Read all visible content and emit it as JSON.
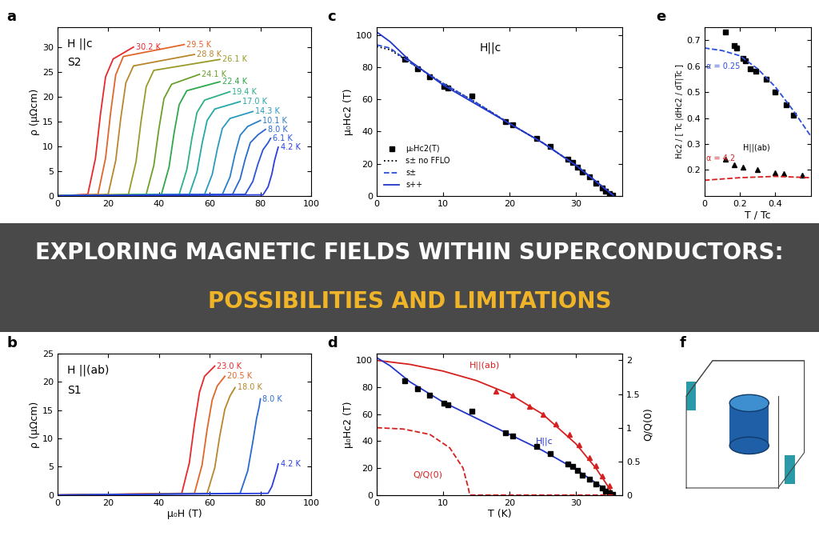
{
  "banner": {
    "title": "EXPLORING MAGNETIC FIELDS WITHIN SUPERCONDUCTORS:",
    "subtitle": "POSSIBILITIES AND LIMITATIONS"
  },
  "chart_data": [
    {
      "type": "line",
      "title": "a",
      "y_label": "ρ (μΩcm)",
      "annotations": [
        "H ||c",
        "S2"
      ],
      "xlim": [
        0,
        100
      ],
      "xticks": [
        0,
        20,
        40,
        60,
        80,
        100
      ],
      "ylim": [
        0,
        34
      ],
      "yticks": [
        0,
        5,
        10,
        15,
        20,
        25,
        30
      ],
      "series": [
        {
          "name": "30.2 K",
          "color": "#e8282b",
          "x": [
            0,
            12,
            15,
            17,
            19,
            22,
            30
          ],
          "values": [
            0,
            0.3,
            7.5,
            16.5,
            24,
            27.6,
            30
          ]
        },
        {
          "name": "29.5 K",
          "color": "#e0662a",
          "x": [
            0,
            16,
            19,
            21,
            23,
            26,
            50
          ],
          "values": [
            0,
            0.3,
            7.6,
            16.8,
            24.4,
            28.1,
            30.5
          ]
        },
        {
          "name": "28.8 K",
          "color": "#b8862b",
          "x": [
            0,
            20,
            23,
            25,
            27,
            30,
            54
          ],
          "values": [
            0,
            0.3,
            7.1,
            15.7,
            22.8,
            26.2,
            28.5
          ]
        },
        {
          "name": "26.1 K",
          "color": "#9a9a2a",
          "x": [
            0,
            28,
            31,
            33,
            35,
            38,
            64
          ],
          "values": [
            0,
            0.3,
            6.9,
            15.1,
            22,
            25.3,
            27.5
          ]
        },
        {
          "name": "24.1 K",
          "color": "#6aa02a",
          "x": [
            0,
            35,
            38,
            40,
            42,
            45,
            56
          ],
          "values": [
            0,
            0.3,
            6.1,
            13.5,
            19.6,
            22.5,
            24.5
          ]
        },
        {
          "name": "22.4 K",
          "color": "#2ea84a",
          "x": [
            0,
            41,
            44,
            46,
            48,
            51,
            64
          ],
          "values": [
            0,
            0.3,
            5.8,
            12.7,
            18.4,
            21.2,
            23
          ]
        },
        {
          "name": "19.4 K",
          "color": "#2bb08a",
          "x": [
            0,
            48,
            51,
            53,
            55,
            58,
            68
          ],
          "values": [
            0,
            0.3,
            5.3,
            11.6,
            16.8,
            19.3,
            21
          ]
        },
        {
          "name": "17.0 K",
          "color": "#26a8a8",
          "x": [
            0,
            52,
            55,
            57,
            59,
            62,
            72
          ],
          "values": [
            0,
            0.3,
            4.8,
            10.5,
            15.2,
            17.5,
            19
          ]
        },
        {
          "name": "14.3 K",
          "color": "#2a9ac0",
          "x": [
            0,
            58,
            61,
            63,
            65,
            68,
            77
          ],
          "values": [
            0,
            0.3,
            4.3,
            9.4,
            13.6,
            15.6,
            17
          ]
        },
        {
          "name": "10.1 K",
          "color": "#2a80c8",
          "x": [
            0,
            65,
            68,
            70,
            72,
            75,
            80
          ],
          "values": [
            0,
            0.3,
            3.8,
            8.4,
            12.2,
            14,
            15.2
          ]
        },
        {
          "name": "8.0 K",
          "color": "#2a6ad0",
          "x": [
            0,
            69,
            72,
            74,
            76,
            79,
            82
          ],
          "values": [
            0,
            0.3,
            3.4,
            7.4,
            10.7,
            12.3,
            13.4
          ]
        },
        {
          "name": "6.1 K",
          "color": "#2a55d8",
          "x": [
            0,
            74,
            77,
            79,
            81,
            83,
            84
          ],
          "values": [
            0,
            0.3,
            2.9,
            6.4,
            9.3,
            10.7,
            11.6
          ]
        },
        {
          "name": "4.2 K",
          "color": "#2a3fe0",
          "x": [
            0,
            81,
            83,
            84.5,
            85.5,
            86.5,
            87
          ],
          "values": [
            0,
            0.2,
            1.8,
            4.4,
            7,
            8.9,
            9.8
          ]
        }
      ]
    },
    {
      "type": "line",
      "title": "b",
      "x_label": "μ₀H (T)",
      "y_label": "ρ (μΩcm)",
      "annotations": [
        "H ||(ab)",
        "S1"
      ],
      "xlim": [
        0,
        100
      ],
      "xticks": [
        0,
        20,
        40,
        60,
        80,
        100
      ],
      "ylim": [
        0,
        25
      ],
      "yticks": [
        0,
        5,
        10,
        15,
        20,
        25
      ],
      "series": [
        {
          "name": "23.0 K",
          "color": "#e8282b",
          "x": [
            0,
            49,
            52,
            54,
            56,
            58,
            62
          ],
          "values": [
            0,
            0.3,
            5.7,
            12.5,
            18.2,
            21,
            22.8
          ]
        },
        {
          "name": "20.5 K",
          "color": "#e0662a",
          "x": [
            0,
            54,
            57,
            59,
            61,
            63,
            66
          ],
          "values": [
            0,
            0.3,
            5.3,
            11.6,
            16.8,
            19.3,
            21
          ]
        },
        {
          "name": "18.0 K",
          "color": "#b8862b",
          "x": [
            0,
            59,
            62,
            64,
            66,
            68,
            70
          ],
          "values": [
            0,
            0.3,
            4.8,
            10.5,
            15.2,
            17.5,
            19
          ]
        },
        {
          "name": "8.0 K",
          "color": "#2a6ad0",
          "x": [
            0,
            72,
            75,
            77,
            78.5,
            79.5,
            80
          ],
          "values": [
            0,
            0.3,
            4.3,
            9.4,
            13.6,
            15.6,
            17
          ]
        },
        {
          "name": "4.2 K",
          "color": "#2a3fe0",
          "x": [
            0,
            83,
            84.5,
            85.5,
            86.5,
            87
          ],
          "values": [
            0,
            0.3,
            1.5,
            3,
            4.5,
            5.5
          ]
        }
      ]
    },
    {
      "type": "line",
      "title": "c",
      "y_label": "μ₀Hc2 (T)",
      "annotations": [
        "H||c"
      ],
      "legend": "lower left",
      "xlim": [
        0,
        37
      ],
      "xticks": [
        0,
        10,
        20,
        30
      ],
      "ylim": [
        0,
        105
      ],
      "yticks": [
        0,
        20,
        40,
        60,
        80,
        100
      ],
      "series": [
        {
          "name": "μ₀Hc2(T)",
          "type": "scatter",
          "marker": "square",
          "color": "#000000",
          "x": [
            4.2,
            6.1,
            8.0,
            10.1,
            10.7,
            14.3,
            19.4,
            20.5,
            24.1,
            26.1,
            28.8,
            29.5,
            30.2,
            31,
            32,
            33,
            34,
            34.5,
            35,
            35.5
          ],
          "values": [
            85,
            79,
            74,
            68,
            67,
            62,
            46,
            44,
            36,
            31,
            23,
            21,
            18,
            15,
            12,
            8,
            5,
            3,
            1.5,
            0.5
          ]
        },
        {
          "name": "s± no FFLO",
          "color": "#000000",
          "line_style": "dotted",
          "x": [
            0,
            2,
            5,
            10,
            15,
            20,
            25,
            30,
            33,
            35.7
          ],
          "values": [
            93,
            91,
            83,
            70,
            58,
            45,
            33,
            19,
            9,
            0
          ]
        },
        {
          "name": "s±",
          "color": "#2b4fd8",
          "line_style": "dashed",
          "x": [
            0,
            2,
            5,
            10,
            15,
            20,
            25,
            30,
            33,
            35.7
          ],
          "values": [
            94,
            92,
            83,
            70,
            58,
            45,
            33,
            19,
            9,
            0
          ]
        },
        {
          "name": "s++",
          "color": "#2236c8",
          "line_style": "solid",
          "x": [
            0,
            2,
            5,
            10,
            15,
            20,
            25,
            30,
            33,
            35.7
          ],
          "values": [
            102,
            96,
            84,
            69,
            57,
            45,
            33,
            19,
            9,
            0
          ]
        }
      ]
    },
    {
      "type": "line",
      "title": "d",
      "x_label": "T (K)",
      "y_label": "μ₀Hc2 (T)",
      "y2_label": "Q/Q(0)",
      "xlim": [
        0,
        37
      ],
      "xticks": [
        0,
        10,
        20,
        30
      ],
      "ylim": [
        0,
        105
      ],
      "yticks": [
        0,
        20,
        40,
        60,
        80,
        100
      ],
      "y2lim": [
        0,
        2.1
      ],
      "y2ticks": [
        0,
        0.5,
        1,
        1.5,
        2
      ],
      "series": [
        {
          "name": "H||(ab)",
          "color": "#d62020",
          "line_style": "solid",
          "x": [
            0,
            5,
            10,
            15,
            20,
            25,
            30,
            33,
            35.7
          ],
          "values": [
            100,
            97,
            92,
            85,
            75,
            60,
            38,
            20,
            0
          ]
        },
        {
          "name": "H||c",
          "color": "#2236c8",
          "line_style": "solid",
          "x": [
            0,
            2,
            5,
            10,
            15,
            20,
            25,
            30,
            33,
            35.7
          ],
          "values": [
            102,
            96,
            84,
            69,
            57,
            45,
            33,
            19,
            9,
            0
          ]
        },
        {
          "name": "Q/Q(0)",
          "color": "#d62020",
          "line_style": "dashed",
          "axis": "y2",
          "x": [
            0,
            4,
            8,
            11,
            13,
            13.8,
            14,
            20,
            30,
            36
          ],
          "values": [
            1,
            0.98,
            0.9,
            0.7,
            0.4,
            0.1,
            0,
            0,
            0,
            0
          ]
        },
        {
          "type": "scatter",
          "marker": "square",
          "color": "#000000",
          "x": [
            4.2,
            6.1,
            8.0,
            10.1,
            10.7,
            14.3,
            19.4,
            20.5,
            24.1,
            26.1,
            28.8,
            29.5,
            30.2,
            31,
            32,
            33,
            34,
            34.5,
            35,
            35.5
          ],
          "values": [
            85,
            79,
            74,
            68,
            67,
            62,
            46,
            44,
            36,
            31,
            23,
            21,
            18,
            15,
            12,
            8,
            5,
            3,
            1.5,
            0.5
          ]
        },
        {
          "type": "scatter",
          "marker": "triangle",
          "color": "#d62020",
          "x": [
            18,
            20.5,
            23,
            25,
            27,
            29,
            30.5,
            32,
            33,
            34,
            35
          ],
          "values": [
            77,
            74,
            66,
            60,
            53,
            45,
            37,
            28,
            22,
            14,
            7
          ]
        }
      ]
    },
    {
      "type": "line",
      "title": "e",
      "x_label": "T / Tc",
      "y_label": "Hc2 / [ Tc |dHc2 / dT|Tc ]",
      "xlim": [
        0,
        0.6
      ],
      "xticks": [
        0,
        0.2,
        0.4
      ],
      "ylim": [
        0.1,
        0.75
      ],
      "yticks": [
        0.2,
        0.3,
        0.4,
        0.5,
        0.6,
        0.7
      ],
      "series": [
        {
          "type": "scatter",
          "marker": "square",
          "color": "#000000",
          "x": [
            0.12,
            0.17,
            0.18,
            0.22,
            0.23,
            0.26,
            0.29,
            0.35,
            0.4,
            0.46,
            0.5
          ],
          "values": [
            0.73,
            0.68,
            0.67,
            0.63,
            0.62,
            0.59,
            0.58,
            0.55,
            0.5,
            0.45,
            0.41
          ]
        },
        {
          "name": "α = 0.25",
          "color": "#2b4fd8",
          "line_style": "dashed",
          "x": [
            0,
            0.1,
            0.2,
            0.3,
            0.4,
            0.5,
            0.6
          ],
          "values": [
            0.67,
            0.66,
            0.64,
            0.59,
            0.52,
            0.43,
            0.33
          ]
        },
        {
          "name": "H||(ab)",
          "type": "scatter",
          "marker": "triangle",
          "color": "#000000",
          "x": [
            0.12,
            0.17,
            0.22,
            0.3,
            0.4,
            0.45,
            0.55
          ],
          "values": [
            0.24,
            0.22,
            0.21,
            0.2,
            0.19,
            0.185,
            0.18
          ]
        },
        {
          "name": "α = 4.2",
          "color": "#d62020",
          "line_style": "dashed",
          "x": [
            0,
            0.2,
            0.4,
            0.6
          ],
          "values": [
            0.16,
            0.17,
            0.175,
            0.17
          ]
        }
      ]
    },
    {
      "type": "surface",
      "title": "f"
    }
  ]
}
